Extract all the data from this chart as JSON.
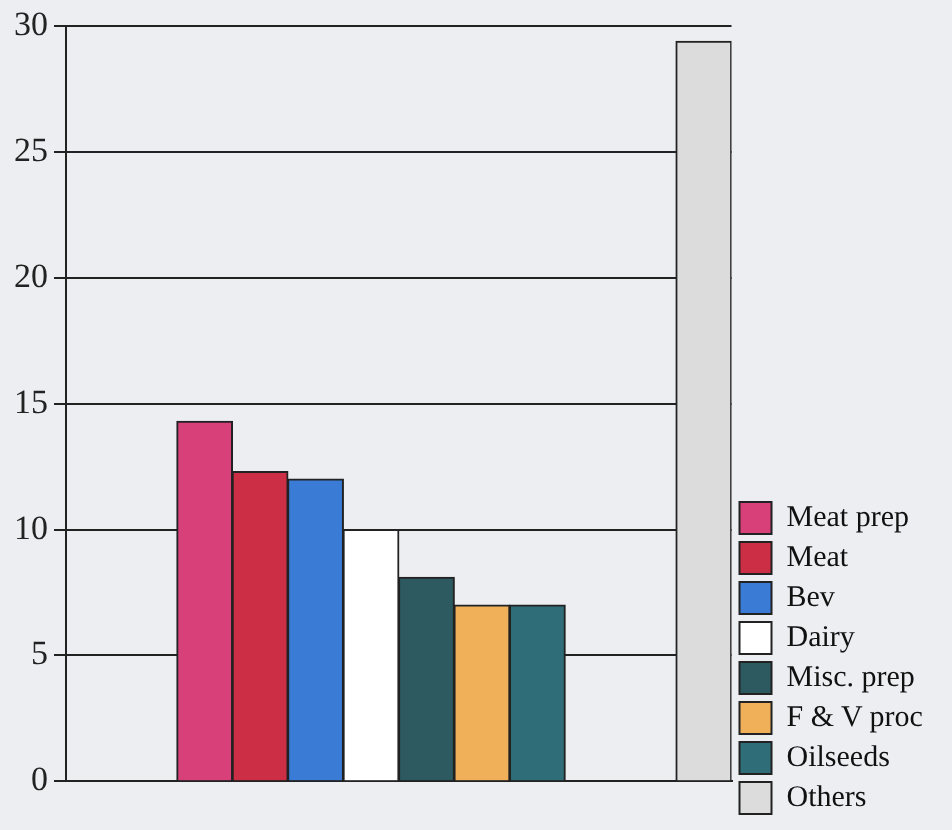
{
  "chart_data": {
    "type": "bar",
    "categories": [
      null,
      null,
      null,
      null,
      null,
      null,
      null,
      null,
      null,
      null,
      null,
      null
    ],
    "series": [
      {
        "name": "Meat prep",
        "color": "#d8407a",
        "values": [
          null,
          null,
          14.3,
          null,
          null,
          null,
          null,
          null,
          null,
          null,
          null,
          null
        ]
      },
      {
        "name": "Meat",
        "color": "#cc2f45",
        "values": [
          null,
          null,
          null,
          12.3,
          null,
          null,
          null,
          null,
          null,
          null,
          null,
          null
        ]
      },
      {
        "name": "Bev",
        "color": "#3a7bd5",
        "values": [
          null,
          null,
          null,
          null,
          12.0,
          null,
          null,
          null,
          null,
          null,
          null,
          null
        ]
      },
      {
        "name": "Dairy",
        "color": "#ffffff",
        "values": [
          null,
          null,
          null,
          null,
          null,
          10.0,
          null,
          null,
          null,
          null,
          null,
          null
        ]
      },
      {
        "name": "Misc. prep",
        "color": "#2c5a60",
        "values": [
          null,
          null,
          null,
          null,
          null,
          null,
          8.1,
          null,
          null,
          null,
          null,
          null
        ]
      },
      {
        "name": "F & V proc",
        "color": "#f0b05a",
        "values": [
          null,
          null,
          null,
          null,
          null,
          null,
          null,
          7.0,
          null,
          null,
          null,
          null
        ]
      },
      {
        "name": "Oilseeds",
        "color": "#2f6e78",
        "values": [
          null,
          null,
          null,
          null,
          null,
          null,
          null,
          null,
          7.0,
          null,
          null,
          null
        ]
      },
      {
        "name": "Others",
        "color": "#dcdcdc",
        "values": [
          null,
          null,
          null,
          null,
          null,
          null,
          null,
          null,
          null,
          null,
          null,
          29.4
        ]
      }
    ],
    "ylim": [
      0,
      30
    ],
    "yticks": [
      0,
      5,
      10,
      15,
      20,
      25,
      30
    ],
    "grid": "y",
    "legend": "right"
  }
}
